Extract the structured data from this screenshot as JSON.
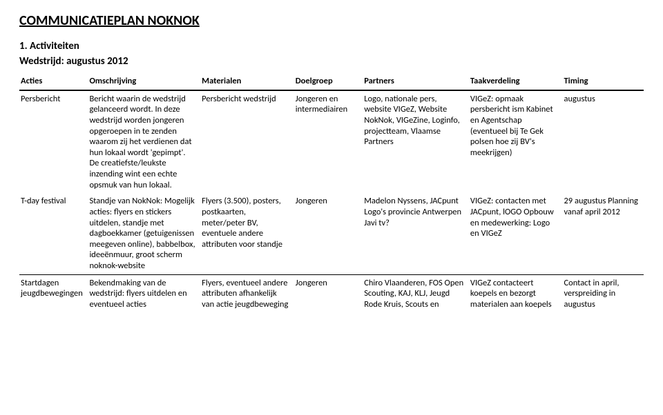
{
  "doc_title": "COMMUNICATIEPLAN NOKNOK",
  "section_number_title": "1. Activiteiten",
  "activity_heading": "Wedstrijd: augustus 2012",
  "columns": {
    "acties": "Acties",
    "omschrijving": "Omschrijving",
    "materialen": "Materialen",
    "doelgroep": "Doelgroep",
    "partners": "Partners",
    "taakverdeling": "Taakverdeling",
    "timing": "Timing"
  },
  "rows": [
    {
      "acties": "Persbericht",
      "omschrijving": "Bericht waarin de wedstrijd gelanceerd wordt. In deze wedstrijd worden jongeren opgeroepen in te zenden waarom zij het verdienen dat hun lokaal wordt 'gepimpt'. De creatiefste/leukste inzending wint een echte opsmuk van hun lokaal.",
      "materialen": "Persbericht wedstrijd",
      "doelgroep": "Jongeren en intermediairen",
      "partners": "Logo, nationale pers, website VIGeZ, Website NokNok, VIGeZine, Loginfo, projectteam, Vlaamse Partners",
      "taakverdeling": "VIGeZ: opmaak persbericht ism Kabinet en Agentschap (eventueel bij Te Gek polsen hoe zij BV's meekrijgen)",
      "timing": "augustus"
    },
    {
      "acties": "T-day festival",
      "omschrijving": "Standje van NokNok: Mogelijk acties: flyers en stickers uitdelen, standje met dagboekkamer (getuigenissen meegeven online), babbelbox, ideeënmuur, groot scherm noknok-website",
      "materialen": "Flyers (3.500), posters, postkaarten, meter/peter BV, eventuele andere attributen voor standje",
      "doelgroep": "Jongeren",
      "partners": "Madelon Nyssens, JACpunt Logo's provincie Antwerpen Javi tv?",
      "taakverdeling": "VIGeZ: contacten met JACpunt, lOGO Opbouw en medewerking: Logo en VIGeZ",
      "timing": "29 augustus Planning vanaf april 2012"
    },
    {
      "acties": "Startdagen jeugdbewegingen",
      "omschrijving": "Bekendmaking van de wedstrijd: flyers uitdelen en eventueel acties",
      "materialen": "Flyers, eventueel andere attributen afhankelijk van actie jeugdbeweging",
      "doelgroep": "Jongeren",
      "partners": "Chiro Vlaanderen, FOS Open Scouting, KAJ, KLJ, Jeugd Rode Kruis, Scouts en",
      "taakverdeling": "VIGeZ contacteert koepels en bezorgt materialen aan koepels",
      "timing": "Contact in april, verspreiding in augustus"
    }
  ]
}
